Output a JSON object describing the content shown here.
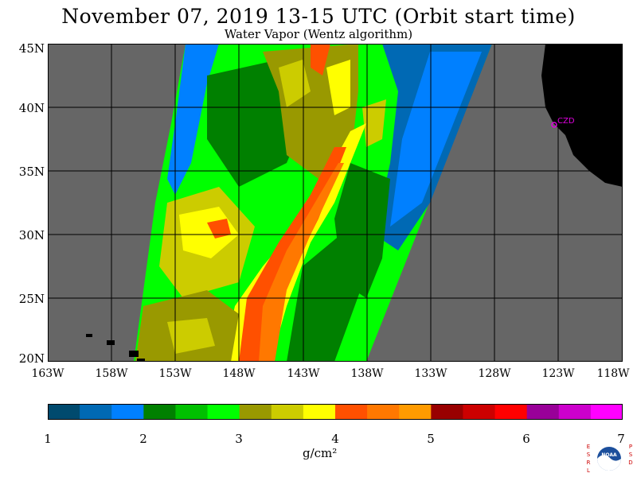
{
  "header": {
    "title": "November 07, 2019  13-15 UTC  (Orbit start time)",
    "subtitle": "Water Vapor (Wentz algorithm)"
  },
  "map": {
    "lat_labels": [
      "45N",
      "40N",
      "35N",
      "30N",
      "25N",
      "20N"
    ],
    "lon_labels": [
      "163W",
      "158W",
      "153W",
      "148W",
      "143W",
      "138W",
      "133W",
      "128W",
      "123W",
      "118W"
    ],
    "place_label": "CZD",
    "colors": {
      "nodata": "#666666",
      "land": "#000000",
      "grid": "#000000"
    }
  },
  "colorbar": {
    "ticks": [
      "1",
      "2",
      "3",
      "4",
      "5",
      "6",
      "7"
    ],
    "units": "g/cm²",
    "colors": [
      "#004a6e",
      "#0069b4",
      "#0080ff",
      "#008000",
      "#00c000",
      "#00ff00",
      "#999900",
      "#cccc00",
      "#ffff00",
      "#ff5000",
      "#ff7800",
      "#ff9b00",
      "#990000",
      "#cc0000",
      "#ff0000",
      "#990099",
      "#cc00cc",
      "#ff00ff"
    ]
  },
  "logo": {
    "left_letters": "ESRL",
    "right_letters": "PSD",
    "center_text": "NOAA"
  }
}
